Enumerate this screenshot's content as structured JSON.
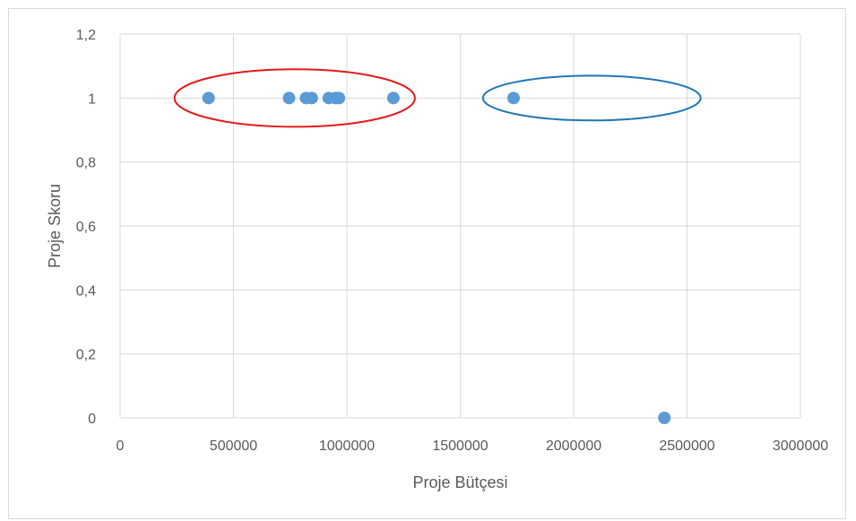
{
  "chart_data": {
    "type": "scatter",
    "title": "",
    "xlabel": "Proje Bütçesi",
    "ylabel": "Proje Skoru",
    "xlim": [
      0,
      3000000
    ],
    "ylim": [
      0,
      1.2
    ],
    "x_ticks": [
      "0",
      "500000",
      "1000000",
      "1500000",
      "2000000",
      "2500000",
      "3000000"
    ],
    "y_ticks": [
      "0",
      "0,2",
      "0,4",
      "0,6",
      "0,8",
      "1",
      "1,2"
    ],
    "grid": true,
    "legend": "none",
    "series": [
      {
        "color": "#5b9bd5",
        "points": [
          {
            "x": 390000,
            "y": 1
          },
          {
            "x": 745000,
            "y": 1
          },
          {
            "x": 820000,
            "y": 1
          },
          {
            "x": 845000,
            "y": 1
          },
          {
            "x": 920000,
            "y": 1
          },
          {
            "x": 950000,
            "y": 1
          },
          {
            "x": 965000,
            "y": 1
          },
          {
            "x": 1205000,
            "y": 1
          },
          {
            "x": 1735000,
            "y": 1
          },
          {
            "x": 2400000,
            "y": 0
          }
        ]
      }
    ],
    "annotations": [
      {
        "shape": "ellipse",
        "color": "#e31a1c",
        "x_range": [
          240000,
          1300000
        ],
        "y_range": [
          0.91,
          1.09
        ]
      },
      {
        "shape": "ellipse",
        "color": "#1f77b4",
        "x_range": [
          1600000,
          2560000
        ],
        "y_range": [
          0.93,
          1.07
        ]
      }
    ]
  }
}
